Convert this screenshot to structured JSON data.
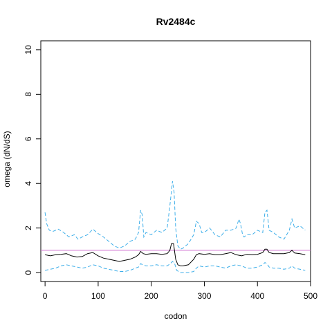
{
  "chart_data": {
    "type": "line",
    "title": "Rv2484c",
    "xlabel": "codon",
    "ylabel": "omega (dN/dS)",
    "xlim": [
      -8,
      500
    ],
    "ylim": [
      -0.4,
      10.4
    ],
    "x_ticks": [
      0,
      100,
      200,
      300,
      400,
      500
    ],
    "y_ticks": [
      0,
      2,
      4,
      6,
      8,
      10
    ],
    "grid": false,
    "colors": {
      "estimate": "#000000",
      "ci": "#3daee9",
      "reference": "#d070d0"
    },
    "reference_line": {
      "y": 1
    },
    "series": [
      {
        "role": "upper-ci",
        "style": "dashed",
        "x": [
          0,
          3,
          8,
          15,
          25,
          35,
          45,
          55,
          62,
          70,
          80,
          90,
          100,
          110,
          120,
          130,
          140,
          150,
          160,
          170,
          176,
          180,
          183,
          186,
          190,
          200,
          210,
          220,
          230,
          235,
          240,
          243,
          246,
          250,
          255,
          260,
          265,
          270,
          280,
          285,
          290,
          295,
          300,
          310,
          320,
          330,
          340,
          350,
          360,
          365,
          368,
          372,
          375,
          380,
          390,
          400,
          410,
          414,
          418,
          422,
          430,
          440,
          450,
          460,
          465,
          470,
          480,
          490
        ],
        "values": [
          2.7,
          2.2,
          1.9,
          1.85,
          1.95,
          1.8,
          1.6,
          1.7,
          1.5,
          1.6,
          1.7,
          1.95,
          1.75,
          1.6,
          1.4,
          1.2,
          1.1,
          1.2,
          1.4,
          1.5,
          1.8,
          2.8,
          2.6,
          1.6,
          1.8,
          1.7,
          1.9,
          1.8,
          2.0,
          3.0,
          4.1,
          3.6,
          2.0,
          1.2,
          1.05,
          1.1,
          1.2,
          1.3,
          1.7,
          2.3,
          2.2,
          1.8,
          1.8,
          2.0,
          1.7,
          1.6,
          1.9,
          1.9,
          2.0,
          2.4,
          2.2,
          1.7,
          1.6,
          1.7,
          1.7,
          1.9,
          1.8,
          2.7,
          2.8,
          1.9,
          1.8,
          1.6,
          1.5,
          1.9,
          2.4,
          2.0,
          2.1,
          1.9
        ]
      },
      {
        "role": "estimate",
        "style": "solid",
        "x": [
          0,
          10,
          20,
          30,
          40,
          50,
          60,
          70,
          80,
          90,
          100,
          110,
          120,
          130,
          140,
          150,
          160,
          170,
          176,
          180,
          185,
          190,
          200,
          210,
          220,
          230,
          235,
          238,
          242,
          246,
          250,
          255,
          260,
          270,
          280,
          285,
          290,
          300,
          310,
          320,
          330,
          340,
          350,
          360,
          370,
          380,
          390,
          400,
          410,
          414,
          418,
          422,
          430,
          440,
          450,
          460,
          465,
          470,
          480,
          490
        ],
        "values": [
          0.8,
          0.75,
          0.8,
          0.82,
          0.85,
          0.75,
          0.7,
          0.72,
          0.85,
          0.9,
          0.75,
          0.65,
          0.6,
          0.55,
          0.5,
          0.55,
          0.6,
          0.7,
          0.8,
          0.95,
          0.85,
          0.82,
          0.85,
          0.85,
          0.82,
          0.85,
          1.0,
          1.3,
          1.3,
          0.6,
          0.35,
          0.3,
          0.3,
          0.35,
          0.6,
          0.8,
          0.85,
          0.82,
          0.85,
          0.8,
          0.8,
          0.85,
          0.9,
          0.8,
          0.75,
          0.82,
          0.8,
          0.82,
          0.9,
          1.05,
          1.05,
          0.9,
          0.85,
          0.85,
          0.85,
          0.9,
          1.0,
          0.88,
          0.85,
          0.8
        ]
      },
      {
        "role": "lower-ci",
        "style": "dashed",
        "x": [
          0,
          10,
          20,
          30,
          40,
          50,
          60,
          70,
          80,
          90,
          100,
          110,
          120,
          130,
          140,
          150,
          160,
          170,
          176,
          180,
          184,
          190,
          200,
          210,
          220,
          230,
          236,
          240,
          244,
          248,
          255,
          260,
          270,
          280,
          285,
          290,
          300,
          310,
          320,
          330,
          340,
          350,
          360,
          370,
          380,
          390,
          400,
          410,
          414,
          418,
          422,
          430,
          440,
          450,
          460,
          465,
          470,
          480,
          490
        ],
        "values": [
          0.1,
          0.15,
          0.2,
          0.3,
          0.35,
          0.3,
          0.25,
          0.2,
          0.25,
          0.35,
          0.3,
          0.2,
          0.15,
          0.1,
          0.05,
          0.05,
          0.1,
          0.2,
          0.25,
          0.4,
          0.35,
          0.3,
          0.3,
          0.35,
          0.3,
          0.3,
          0.4,
          0.5,
          0.4,
          0.1,
          0.0,
          0.0,
          0.0,
          0.05,
          0.2,
          0.3,
          0.25,
          0.3,
          0.3,
          0.25,
          0.2,
          0.3,
          0.35,
          0.3,
          0.2,
          0.2,
          0.25,
          0.35,
          0.45,
          0.4,
          0.25,
          0.2,
          0.2,
          0.15,
          0.2,
          0.3,
          0.2,
          0.15,
          0.1
        ]
      }
    ]
  }
}
